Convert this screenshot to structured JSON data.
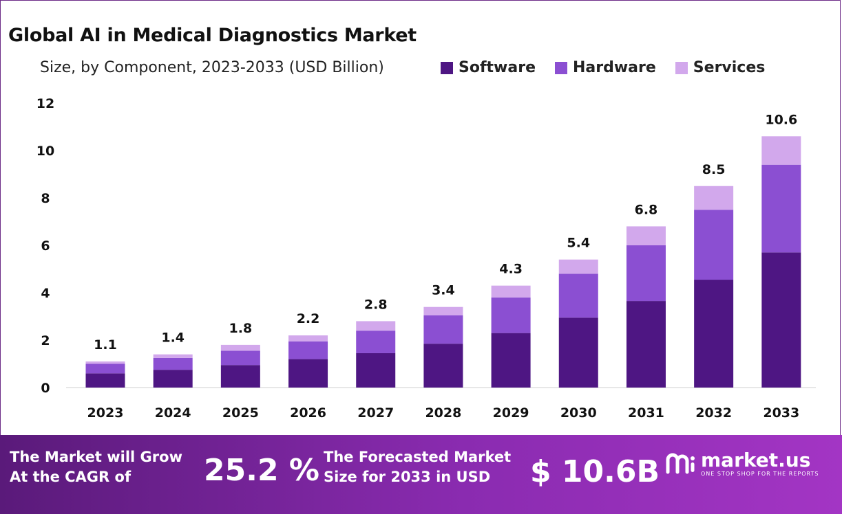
{
  "header": {
    "title": "Global AI in Medical Diagnostics Market",
    "subtitle": "Size, by Component, 2023-2033 (USD Billion)"
  },
  "colors": {
    "software": "#4e1683",
    "hardware": "#8b4fd2",
    "services": "#d2a8ec",
    "banner": "#8a2bb0"
  },
  "legend": [
    {
      "label": "Software",
      "color": "#4e1683"
    },
    {
      "label": "Hardware",
      "color": "#8b4fd2"
    },
    {
      "label": "Services",
      "color": "#d2a8ec"
    }
  ],
  "chart_data": {
    "type": "bar",
    "stacked": true,
    "categories": [
      "2023",
      "2024",
      "2025",
      "2026",
      "2027",
      "2028",
      "2029",
      "2030",
      "2031",
      "2032",
      "2033"
    ],
    "series": [
      {
        "name": "Software",
        "values": [
          0.6,
          0.75,
          0.95,
          1.2,
          1.45,
          1.85,
          2.3,
          2.95,
          3.65,
          4.55,
          5.7
        ]
      },
      {
        "name": "Hardware",
        "values": [
          0.4,
          0.5,
          0.6,
          0.75,
          0.95,
          1.2,
          1.5,
          1.85,
          2.35,
          2.95,
          3.7
        ]
      },
      {
        "name": "Services",
        "values": [
          0.1,
          0.15,
          0.25,
          0.25,
          0.4,
          0.35,
          0.5,
          0.6,
          0.8,
          1.0,
          1.2
        ]
      }
    ],
    "totals": [
      "1.1",
      "1.4",
      "1.8",
      "2.2",
      "2.8",
      "3.4",
      "4.3",
      "5.4",
      "6.8",
      "8.5",
      "10.6"
    ],
    "yticks": [
      "0",
      "2",
      "4",
      "6",
      "8",
      "10",
      "12"
    ],
    "ylim": [
      0,
      12
    ],
    "grid": false,
    "legend_position": "top-right"
  },
  "banner": {
    "cagr_line1": "The Market will Grow",
    "cagr_line2": "At the CAGR of",
    "cagr_value": "25.2 %",
    "forecast_line1": "The Forecasted Market",
    "forecast_line2": "Size for 2033 in USD",
    "forecast_value": "$ 10.6B",
    "logo_name": "market.us",
    "logo_tagline": "ONE STOP SHOP FOR THE REPORTS"
  }
}
